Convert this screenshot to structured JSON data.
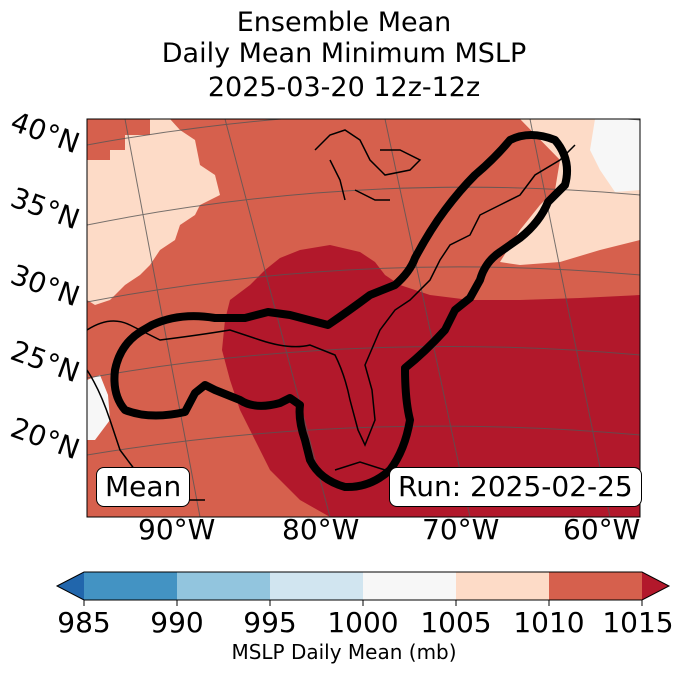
{
  "title": {
    "line1": "Ensemble Mean",
    "line2": "Daily Mean Minimum MSLP",
    "line3": "2025-03-20 12z-12z"
  },
  "map": {
    "lat_labels": [
      "40°N",
      "35°N",
      "30°N",
      "25°N",
      "20°N"
    ],
    "lon_labels": [
      "90°W",
      "80°W",
      "70°W",
      "60°W"
    ],
    "panel_label": "Mean",
    "run_label": "Run: 2025-02-25"
  },
  "colorbar": {
    "ticks": [
      "985",
      "990",
      "995",
      "1000",
      "1005",
      "1010",
      "1015"
    ],
    "label": "MSLP Daily Mean (mb)",
    "colors": {
      "below": "#2166ac",
      "985-990": "#4393c3",
      "990-995": "#92c5de",
      "995-1000": "#d1e5f0",
      "1000-1005": "#f7f7f7",
      "1005-1010": "#fddbc7",
      "1010-1015": "#d6604d",
      "above": "#b2182b"
    }
  }
}
